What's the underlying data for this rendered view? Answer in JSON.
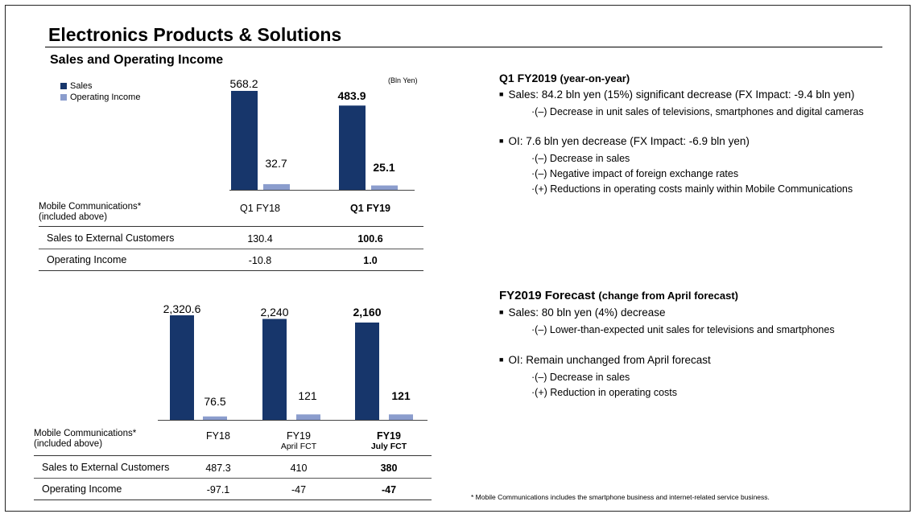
{
  "page": {
    "title": "Electronics Products & Solutions",
    "subtitle": "Sales and Operating Income"
  },
  "colors": {
    "sales": "#17366b",
    "operating_income": "#8b9dcd"
  },
  "chart_data": [
    {
      "type": "bar",
      "unit": "(Bln Yen)",
      "legend": [
        "Sales",
        "Operating Income"
      ],
      "categories": [
        "Q1 FY18",
        "Q1 FY19"
      ],
      "series": [
        {
          "name": "Sales",
          "values": [
            568.2,
            483.9
          ]
        },
        {
          "name": "Operating Income",
          "values": [
            32.7,
            25.1
          ]
        }
      ],
      "labels": {
        "sales": [
          "568.2",
          "483.9"
        ],
        "oi": [
          "32.7",
          "25.1"
        ]
      },
      "ylim": [
        0,
        600
      ]
    },
    {
      "type": "bar",
      "categories": [
        "FY18",
        "FY19 April FCT",
        "FY19 July FCT"
      ],
      "series": [
        {
          "name": "Sales",
          "values": [
            2320.6,
            2240,
            2160
          ]
        },
        {
          "name": "Operating Income",
          "values": [
            76.5,
            121,
            121
          ]
        }
      ],
      "labels": {
        "sales": [
          "2,320.6",
          "2,240",
          "2,160"
        ],
        "oi": [
          "76.5",
          "121",
          "121"
        ]
      },
      "ylim": [
        0,
        2500
      ]
    }
  ],
  "table1": {
    "mobile_label": "Mobile Communications*",
    "mobile_sub": "(included above)",
    "headers": [
      "Q1 FY18",
      "Q1 FY19"
    ],
    "rows": [
      {
        "label": "Sales to External Customers",
        "values": [
          "130.4",
          "100.6"
        ]
      },
      {
        "label": "Operating Income",
        "values": [
          "-10.8",
          "1.0"
        ]
      }
    ]
  },
  "table2": {
    "mobile_label": "Mobile Communications*",
    "mobile_sub": "(included above)",
    "headers": [
      {
        "main": "FY18",
        "sub": ""
      },
      {
        "main": "FY19",
        "sub": "April FCT"
      },
      {
        "main": "FY19",
        "sub": "July FCT"
      }
    ],
    "rows": [
      {
        "label": "Sales to External Customers",
        "values": [
          "487.3",
          "410",
          "380"
        ]
      },
      {
        "label": "Operating Income",
        "values": [
          "-97.1",
          "-47",
          "-47"
        ]
      }
    ]
  },
  "right": {
    "q1": {
      "heading": "Q1 FY2019",
      "heading_sub": "(year-on-year)",
      "sales_bullet": "Sales: 84.2 bln yen (15%) significant decrease (FX Impact: -9.4 bln yen)",
      "sales_sub": [
        "·(–) Decrease in unit sales of televisions, smartphones and digital cameras"
      ],
      "oi_bullet": "OI: 7.6 bln yen decrease (FX Impact: -6.9 bln yen)",
      "oi_sub": [
        "·(–) Decrease in sales",
        "·(–) Negative impact of foreign exchange rates",
        "·(+)  Reductions in operating costs mainly within Mobile Communications"
      ]
    },
    "fcst": {
      "heading": "FY2019 Forecast",
      "heading_sub": "(change from April forecast)",
      "sales_bullet": "Sales: 80 bln yen (4%) decrease",
      "sales_sub": [
        "·(–) Lower-than-expected unit sales for televisions and smartphones"
      ],
      "oi_bullet": "OI: Remain unchanged from April forecast",
      "oi_sub": [
        "·(–) Decrease in sales",
        "·(+) Reduction in operating costs"
      ]
    },
    "footnote": "* Mobile Communications includes the smartphone business and internet-related service business."
  }
}
